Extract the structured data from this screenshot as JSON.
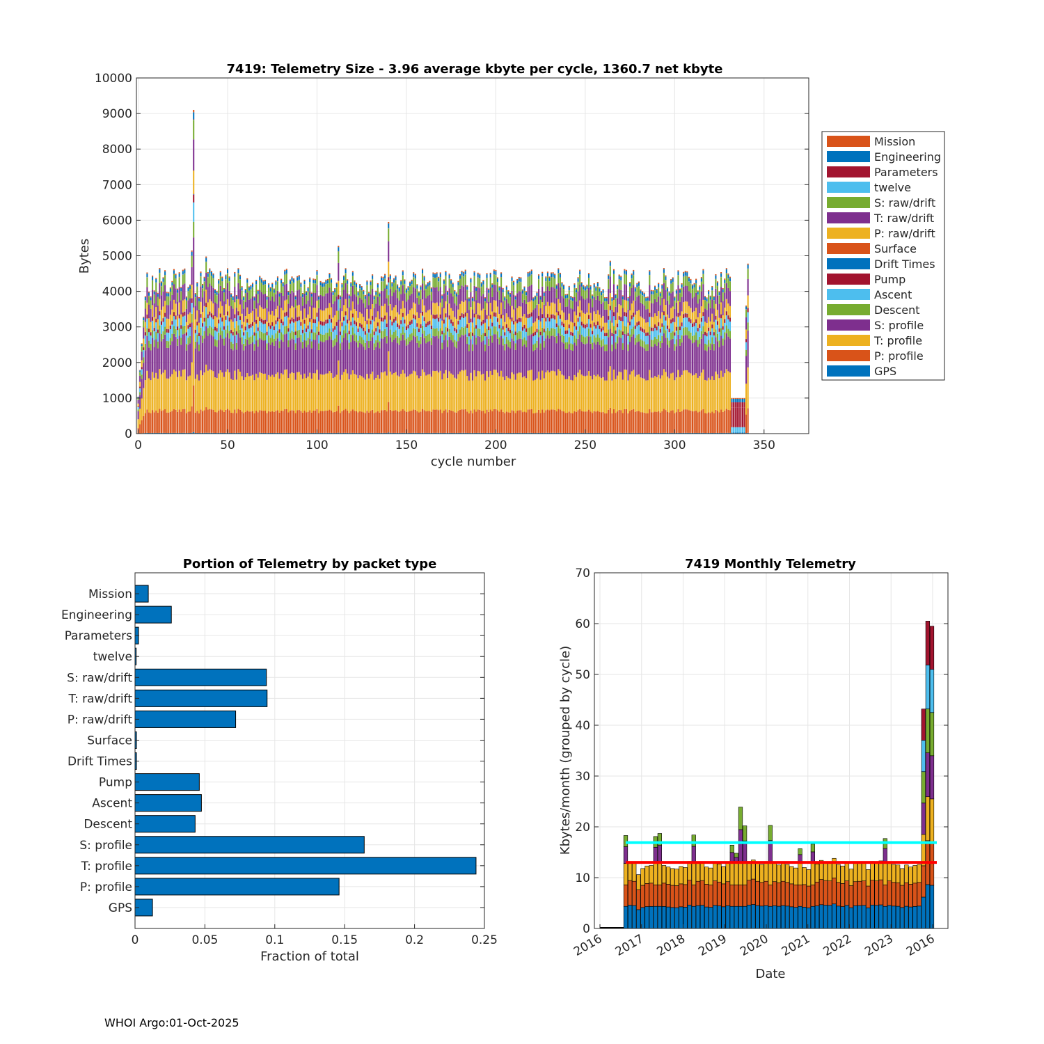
{
  "footer": "WHOI Argo:01-Oct-2025",
  "colors": {
    "blue": "#0072BD",
    "orange": "#D95319",
    "yellow": "#EDB120",
    "purple": "#7E2F8E",
    "green": "#77AC30",
    "cyan": "#4DBEEE",
    "maroon": "#A2142F",
    "cyan_line": "#00FFFF",
    "red_line": "#FF0000",
    "grid": "#e6e6e6",
    "axis": "#262626"
  },
  "chart_data": [
    {
      "id": "telemetry-size",
      "type": "bar",
      "stacked": true,
      "title": "7419: Telemetry Size - 3.96 average kbyte per cycle, 1360.7 net kbyte",
      "xlabel": "cycle number",
      "ylabel": "Bytes",
      "xlim": [
        -1,
        375
      ],
      "ylim": [
        0,
        10000
      ],
      "xticks": [
        0,
        50,
        100,
        150,
        200,
        250,
        300,
        350
      ],
      "yticks": [
        0,
        1000,
        2000,
        3000,
        4000,
        5000,
        6000,
        7000,
        8000,
        9000,
        10000
      ],
      "grid": true,
      "legend_location": "right",
      "legend": [
        {
          "name": "Mission",
          "color": "#D95319"
        },
        {
          "name": "Engineering",
          "color": "#0072BD"
        },
        {
          "name": "Parameters",
          "color": "#A2142F"
        },
        {
          "name": "twelve",
          "color": "#4DBEEE"
        },
        {
          "name": "S: raw/drift",
          "color": "#77AC30"
        },
        {
          "name": "T: raw/drift",
          "color": "#7E2F8E"
        },
        {
          "name": "P: raw/drift",
          "color": "#EDB120"
        },
        {
          "name": "Surface",
          "color": "#D95319"
        },
        {
          "name": "Drift Times",
          "color": "#0072BD"
        },
        {
          "name": "Pump",
          "color": "#A2142F"
        },
        {
          "name": "Ascent",
          "color": "#4DBEEE"
        },
        {
          "name": "Descent",
          "color": "#77AC30"
        },
        {
          "name": "S: profile",
          "color": "#7E2F8E"
        },
        {
          "name": "T: profile",
          "color": "#EDB120"
        },
        {
          "name": "P: profile",
          "color": "#D95319"
        },
        {
          "name": "GPS",
          "color": "#0072BD"
        }
      ],
      "stack_order": [
        "GPS",
        "P: profile",
        "T: profile",
        "S: profile",
        "Descent",
        "Ascent",
        "Pump",
        "Drift Times",
        "Surface",
        "P: raw/drift",
        "T: raw/drift",
        "S: raw/drift",
        "twelve",
        "Parameters",
        "Engineering",
        "Mission"
      ],
      "cycles": [
        0,
        341
      ],
      "typical_cycle_bytes": {
        "GPS": 20,
        "P: profile": 600,
        "T: profile": 1000,
        "S: profile": 900,
        "Descent": 200,
        "Ascent": 250,
        "Pump": 100,
        "Drift Times": 5,
        "Surface": 5,
        "P: raw/drift": 300,
        "T: raw/drift": 400,
        "S: raw/drift": 250,
        "twelve": 3,
        "Parameters": 5,
        "Engineering": 90,
        "Mission": 30
      },
      "peaks": [
        {
          "cycle": 31,
          "total": 9100
        },
        {
          "cycle": 30,
          "total": 5150
        },
        {
          "cycle": 38,
          "total": 4980
        },
        {
          "cycle": 140,
          "total": 5950
        },
        {
          "cycle": 112,
          "total": 5280
        },
        {
          "cycle": 264,
          "total": 4860
        },
        {
          "cycle": 341,
          "total": 4780
        },
        {
          "cycle": 340,
          "total": 3600
        }
      ],
      "low_cycles": {
        "range": [
          332,
          339
        ],
        "total": 1000
      }
    },
    {
      "id": "portion-by-packet-type",
      "type": "barh",
      "title": "Portion of Telemetry by packet type",
      "xlabel": "Fraction of total",
      "xlim": [
        0,
        0.25
      ],
      "xticks": [
        0,
        0.05,
        0.1,
        0.15,
        0.2,
        0.25
      ],
      "xticklabels": [
        "0",
        "0.05",
        "0.1",
        "0.15",
        "0.2",
        "0.25"
      ],
      "grid": true,
      "color": "#0072BD",
      "categories": [
        "Mission",
        "Engineering",
        "Parameters",
        "twelve",
        "S: raw/drift",
        "T: raw/drift",
        "P: raw/drift",
        "Surface",
        "Drift Times",
        "Pump",
        "Ascent",
        "Descent",
        "S: profile",
        "T: profile",
        "P: profile",
        "GPS"
      ],
      "values": [
        0.0095,
        0.026,
        0.0025,
        0.0008,
        0.094,
        0.0945,
        0.072,
        0.001,
        0.001,
        0.046,
        0.0475,
        0.043,
        0.164,
        0.244,
        0.146,
        0.0125
      ]
    },
    {
      "id": "monthly-telemetry",
      "type": "bar",
      "stacked": true,
      "title": "7419 Monthly Telemetry",
      "xlabel": "Date",
      "ylabel": "Kbytes/month (grouped by cycle)",
      "ylim": [
        0,
        70
      ],
      "yticks": [
        0,
        10,
        20,
        30,
        40,
        50,
        60,
        70
      ],
      "xticklabels": [
        "2016",
        "2017",
        "2018",
        "2019",
        "2020",
        "2021",
        "2022",
        "2023",
        "2016"
      ],
      "grid": true,
      "reference_lines": [
        {
          "name": "cyan-line",
          "value": 16.9,
          "color": "#00FFFF"
        },
        {
          "name": "red-line",
          "value": 13.0,
          "color": "#FF0000"
        }
      ],
      "stack_colors": [
        "#0072BD",
        "#D95319",
        "#EDB120",
        "#7E2F8E",
        "#77AC30",
        "#4DBEEE",
        "#A2142F"
      ],
      "months": 80,
      "first_data_month": 7,
      "monthly_totals_kbytes": [
        18.3,
        13.1,
        12.9,
        10.6,
        11.8,
        12.3,
        12.4,
        18.1,
        18.7,
        12.4,
        12.1,
        11.8,
        11.7,
        12.2,
        12.0,
        13.2,
        18.4,
        12.9,
        13.1,
        12.1,
        11.9,
        13.0,
        12.7,
        12.2,
        12.8,
        16.4,
        14.8,
        23.9,
        20.2,
        13.2,
        13.5,
        12.9,
        12.6,
        12.9,
        20.3,
        12.8,
        12.5,
        12.9,
        12.6,
        12.2,
        11.9,
        15.7,
        12.0,
        11.6,
        16.6,
        12.7,
        13.4,
        13.1,
        13.0,
        13.8,
        12.6,
        12.3,
        13.0,
        11.7,
        12.8,
        12.9,
        13.0,
        11.6,
        13.2,
        13.0,
        13.3,
        17.7,
        13.0,
        12.6,
        12.5,
        11.8,
        12.5,
        12.1,
        12.4,
        12.6,
        43.2,
        60.5,
        59.5
      ],
      "chart_tail_note": "last three months show large spike"
    }
  ]
}
